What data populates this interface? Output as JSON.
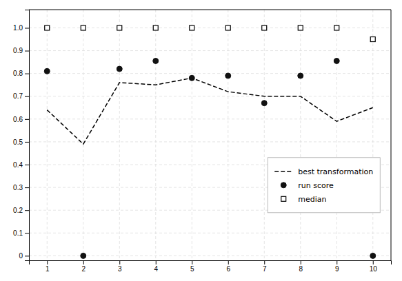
{
  "chart_data": {
    "type": "line",
    "x": [
      1,
      2,
      3,
      4,
      5,
      6,
      7,
      8,
      9,
      10
    ],
    "xlim": [
      0.5,
      10.5
    ],
    "ylim": [
      -0.02,
      1.08
    ],
    "xticks": [
      1,
      2,
      3,
      4,
      5,
      6,
      7,
      8,
      9,
      10
    ],
    "yticks": [
      0,
      0.1,
      0.2,
      0.3,
      0.4,
      0.5,
      0.6,
      0.7,
      0.8,
      0.9,
      {
        "value": 1.0,
        "label": "1.0"
      }
    ],
    "grid": true,
    "legend": "lower right",
    "series": [
      {
        "name": "best transformation",
        "type": "line",
        "line_style": "dashed",
        "color": "#000000",
        "values": [
          0.64,
          0.49,
          0.76,
          0.75,
          0.78,
          0.72,
          0.7,
          0.7,
          0.59,
          0.65
        ]
      },
      {
        "name": "run score",
        "type": "scatter",
        "marker": "circle",
        "color": "#111111",
        "values": [
          0.81,
          0.0,
          0.82,
          0.855,
          0.78,
          0.79,
          0.67,
          0.79,
          0.855,
          0.0
        ]
      },
      {
        "name": "median",
        "type": "scatter",
        "marker": "square-open",
        "color": "#000000",
        "values": [
          1.0,
          1.0,
          1.0,
          1.0,
          1.0,
          1.0,
          1.0,
          1.0,
          1.0,
          0.95
        ]
      }
    ]
  }
}
